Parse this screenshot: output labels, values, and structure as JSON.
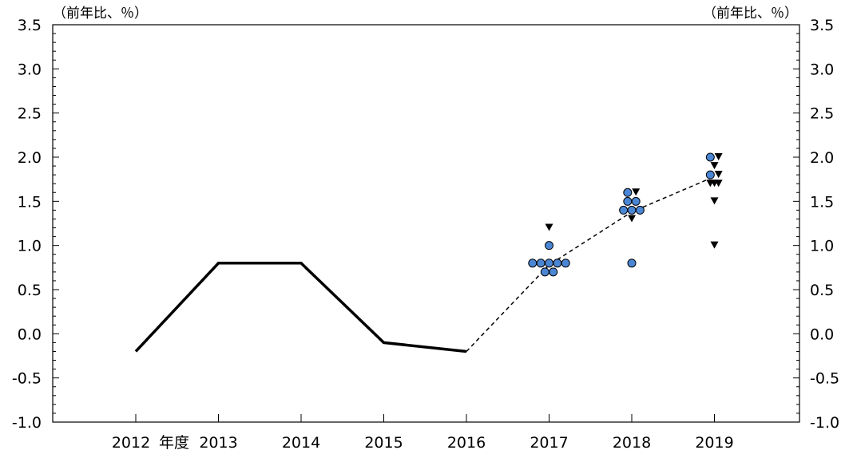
{
  "chart_data": {
    "type": "line",
    "title": "",
    "xlabel": "",
    "ylabel": "",
    "ylim": [
      -1.0,
      3.5
    ],
    "y_ticks": [
      "3.5",
      "3.0",
      "2.5",
      "2.0",
      "1.5",
      "1.0",
      "0.5",
      "0.0",
      "-0.5",
      "-1.0"
    ],
    "y_tick_values": [
      3.5,
      3.0,
      2.5,
      2.0,
      1.5,
      1.0,
      0.5,
      0.0,
      -0.5,
      -1.0
    ],
    "y_ticks_right": [
      "3.5",
      "3.0",
      "2.5",
      "2.0",
      "1.5",
      "1.0",
      "0.5",
      "0.0",
      "-0.5",
      "-1.0"
    ],
    "left_unit_label": "（前年比、％）",
    "right_unit_label": "（前年比、％）",
    "x_year_marker": "年度",
    "categories": [
      "2012",
      "2013",
      "2014",
      "2015",
      "2016",
      "2017",
      "2018",
      "2019"
    ],
    "grid": false,
    "series": [
      {
        "style": "solid",
        "color": "#000000",
        "points": [
          {
            "x": 2012,
            "y": -0.2
          },
          {
            "x": 2013,
            "y": 0.8
          },
          {
            "x": 2014,
            "y": 0.8
          },
          {
            "x": 2015,
            "y": -0.1
          },
          {
            "x": 2016,
            "y": -0.2
          }
        ]
      },
      {
        "style": "dashed",
        "color": "#000000",
        "points": [
          {
            "x": 2016,
            "y": -0.2
          },
          {
            "x": 2017,
            "y": 0.78
          },
          {
            "x": 2018,
            "y": 1.38
          },
          {
            "x": 2019,
            "y": 1.78
          }
        ]
      }
    ],
    "scatter_circles": {
      "marker": "circle",
      "color": "#4a86d4",
      "points": [
        {
          "x": 2016.8,
          "y": 0.8
        },
        {
          "x": 2016.9,
          "y": 0.8
        },
        {
          "x": 2016.95,
          "y": 0.7
        },
        {
          "x": 2017.0,
          "y": 1.0
        },
        {
          "x": 2017.0,
          "y": 0.8
        },
        {
          "x": 2017.05,
          "y": 0.7
        },
        {
          "x": 2017.1,
          "y": 0.8
        },
        {
          "x": 2017.2,
          "y": 0.8
        },
        {
          "x": 2017.9,
          "y": 1.4
        },
        {
          "x": 2017.95,
          "y": 1.6
        },
        {
          "x": 2017.95,
          "y": 1.5
        },
        {
          "x": 2018.0,
          "y": 0.8
        },
        {
          "x": 2018.0,
          "y": 1.4
        },
        {
          "x": 2018.05,
          "y": 1.5
        },
        {
          "x": 2018.1,
          "y": 1.4
        },
        {
          "x": 2018.95,
          "y": 2.0
        },
        {
          "x": 2018.95,
          "y": 1.8
        }
      ]
    },
    "scatter_triangles": {
      "marker": "triangle-down",
      "color": "#000000",
      "points": [
        {
          "x": 2017.0,
          "y": 1.2
        },
        {
          "x": 2018.0,
          "y": 1.3
        },
        {
          "x": 2018.05,
          "y": 1.6
        },
        {
          "x": 2019.0,
          "y": 1.0
        },
        {
          "x": 2019.0,
          "y": 1.5
        },
        {
          "x": 2019.0,
          "y": 1.7
        },
        {
          "x": 2018.95,
          "y": 1.7
        },
        {
          "x": 2019.0,
          "y": 1.9
        },
        {
          "x": 2019.05,
          "y": 1.8
        },
        {
          "x": 2019.05,
          "y": 2.0
        },
        {
          "x": 2019.05,
          "y": 1.7
        }
      ]
    }
  }
}
